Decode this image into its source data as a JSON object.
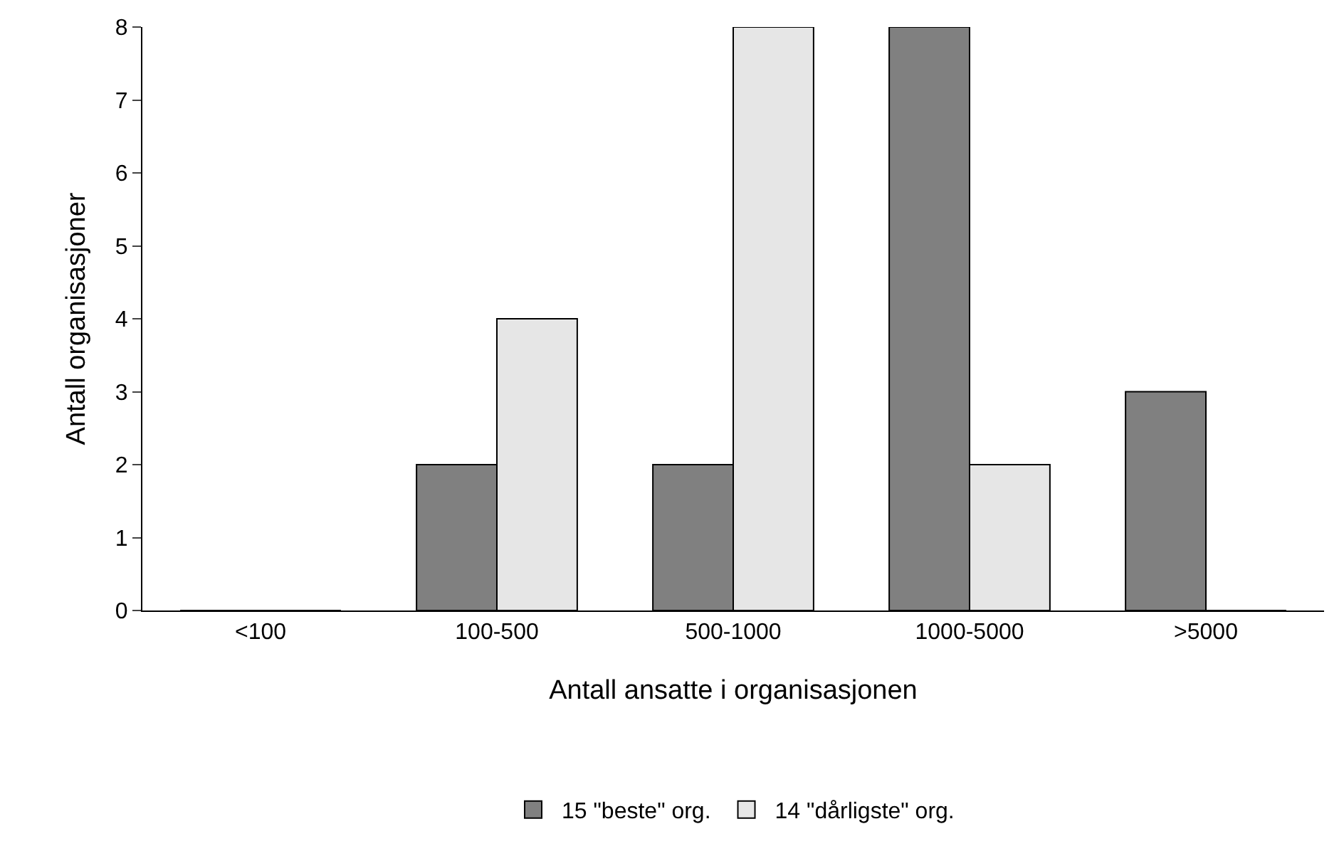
{
  "chart_data": {
    "type": "bar",
    "xlabel": "Antall ansatte i organisasjonen",
    "ylabel": "Antall organisasjoner",
    "categories": [
      "<100",
      "100-500",
      "500-1000",
      "1000-5000",
      ">5000"
    ],
    "series": [
      {
        "name": "15 \"beste\" org.",
        "color": "#808080",
        "values": [
          0,
          2,
          2,
          8,
          3
        ]
      },
      {
        "name": "14 \"dårligste\" org.",
        "color": "#e6e6e6",
        "values": [
          0,
          4,
          8,
          2,
          0
        ]
      }
    ],
    "ylim": [
      0,
      8
    ],
    "yticks": [
      0,
      1,
      2,
      3,
      4,
      5,
      6,
      7,
      8
    ],
    "legend": "bottom"
  }
}
